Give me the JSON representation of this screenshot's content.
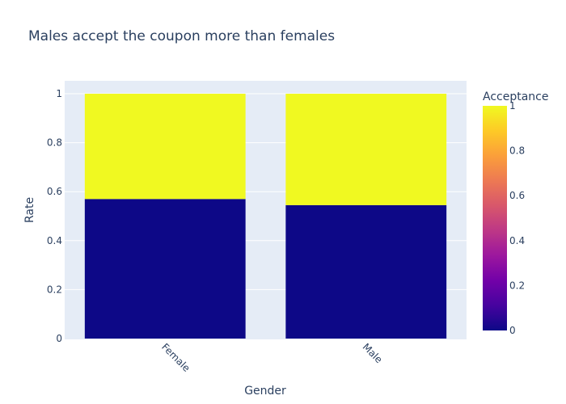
{
  "chart_data": {
    "type": "bar",
    "barmode": "stack",
    "title": "Males accept the coupon more than females",
    "xlabel": "Gender",
    "ylabel": "Rate",
    "categories": [
      "Female",
      "Male"
    ],
    "ylim": [
      0,
      1.05
    ],
    "yticks": [
      "0",
      "0.2",
      "0.4",
      "0.6",
      "0.8",
      "1"
    ],
    "grid": true,
    "series": [
      {
        "acceptance": 0,
        "values": [
          0.57,
          0.545
        ],
        "color": "#0d0887"
      },
      {
        "acceptance": 1,
        "values": [
          0.43,
          0.455
        ],
        "color": "#f0f921"
      }
    ],
    "colorbar": {
      "title": "Acceptance",
      "range": [
        0,
        1
      ],
      "ticks": [
        "0",
        "0.2",
        "0.4",
        "0.6",
        "0.8",
        "1"
      ],
      "colorscale": "plasma"
    },
    "plot_bgcolor": "#e5ecf6"
  }
}
